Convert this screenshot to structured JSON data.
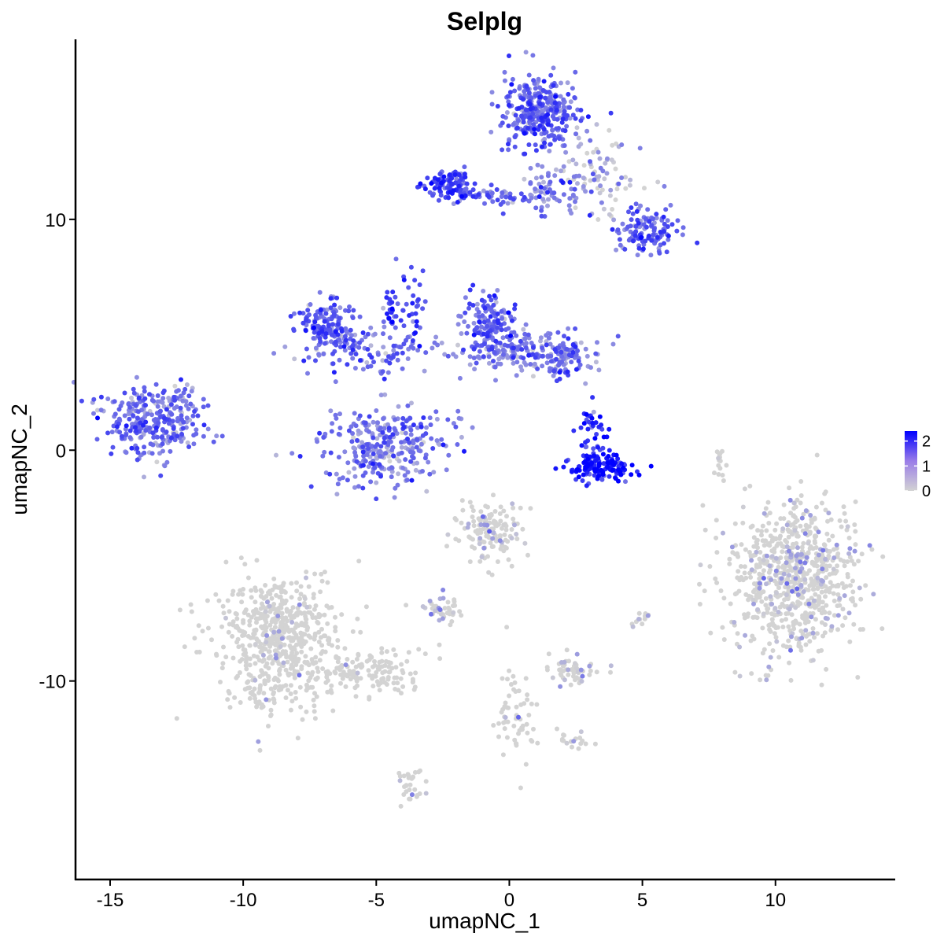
{
  "chart_data": {
    "type": "scatter",
    "title": "Selplg",
    "xlabel": "umapNC_1",
    "ylabel": "umapNC_2",
    "xlim": [
      -16.3,
      14.5
    ],
    "ylim": [
      -18.6,
      17.8
    ],
    "xticks": [
      -15,
      -10,
      -5,
      0,
      5,
      10
    ],
    "yticks": [
      -10,
      0,
      10
    ],
    "xtick_labels": [
      "-15",
      "-10",
      "-5",
      "0",
      "5",
      "10"
    ],
    "ytick_labels": [
      "-10",
      "0",
      "10"
    ],
    "grid": false,
    "legend": {
      "placement": "right",
      "type": "colorbar",
      "range": [
        0,
        2.4
      ],
      "ticks": [
        0,
        1,
        2
      ],
      "tick_labels": [
        "0",
        "1",
        "2"
      ],
      "low_color": "#d3d3d3",
      "high_color": "#0000ff"
    },
    "clusters": [
      {
        "cx": 1.2,
        "cy": 14.7,
        "sx": 0.75,
        "sy": 0.8,
        "n": 340,
        "mean": 1.2
      },
      {
        "cx": 3.2,
        "cy": 11.6,
        "sx": 0.9,
        "sy": 0.9,
        "n": 90,
        "mean": 0.6
      },
      {
        "cx": 5.2,
        "cy": 9.5,
        "sx": 0.6,
        "sy": 0.5,
        "n": 120,
        "mean": 1.3
      },
      {
        "cx": -2.2,
        "cy": 11.5,
        "sx": 0.45,
        "sy": 0.35,
        "n": 110,
        "mean": 1.5
      },
      {
        "cx": -0.2,
        "cy": 11.1,
        "sx": 0.9,
        "sy": 0.2,
        "n": 60,
        "mean": 1.2
      },
      {
        "cx": 1.7,
        "cy": 11.3,
        "sx": 0.6,
        "sy": 0.5,
        "n": 50,
        "mean": 1.0
      },
      {
        "cx": -6.8,
        "cy": 5.4,
        "sx": 0.55,
        "sy": 0.5,
        "n": 150,
        "mean": 1.2
      },
      {
        "cx": -5.3,
        "cy": 4.2,
        "sx": 1.2,
        "sy": 0.6,
        "n": 110,
        "mean": 1.1
      },
      {
        "cx": -3.8,
        "cy": 6.3,
        "sx": 0.4,
        "sy": 0.9,
        "n": 40,
        "mean": 1.5
      },
      {
        "cx": -0.8,
        "cy": 5.5,
        "sx": 0.5,
        "sy": 0.6,
        "n": 120,
        "mean": 1.3
      },
      {
        "cx": 0.3,
        "cy": 4.3,
        "sx": 1.3,
        "sy": 0.5,
        "n": 180,
        "mean": 1.0
      },
      {
        "cx": 2.1,
        "cy": 4.0,
        "sx": 0.5,
        "sy": 0.4,
        "n": 70,
        "mean": 1.1
      },
      {
        "cx": -4.8,
        "cy": 0.1,
        "sx": 1.2,
        "sy": 0.8,
        "n": 290,
        "mean": 0.9
      },
      {
        "cx": -13.4,
        "cy": 1.2,
        "sx": 0.9,
        "sy": 0.75,
        "n": 290,
        "mean": 1.1
      },
      {
        "cx": 3.5,
        "cy": -0.8,
        "sx": 0.6,
        "sy": 0.3,
        "n": 140,
        "mean": 2.1
      },
      {
        "cx": 3.2,
        "cy": 0.8,
        "sx": 0.25,
        "sy": 0.6,
        "n": 40,
        "mean": 1.8
      },
      {
        "cx": 10.7,
        "cy": -5.5,
        "sx": 1.2,
        "sy": 1.6,
        "n": 750,
        "mean": 0.2
      },
      {
        "cx": -0.6,
        "cy": -3.5,
        "sx": 0.6,
        "sy": 0.7,
        "n": 140,
        "mean": 0.2
      },
      {
        "cx": -8.6,
        "cy": -8.3,
        "sx": 1.1,
        "sy": 1.5,
        "n": 620,
        "mean": 0.02
      },
      {
        "cx": -5.2,
        "cy": -9.5,
        "sx": 1.1,
        "sy": 0.5,
        "n": 130,
        "mean": 0.02
      },
      {
        "cx": -2.5,
        "cy": -6.9,
        "sx": 0.45,
        "sy": 0.3,
        "n": 40,
        "mean": 0.3
      },
      {
        "cx": 2.4,
        "cy": -9.6,
        "sx": 0.55,
        "sy": 0.25,
        "n": 55,
        "mean": 0.25
      },
      {
        "cx": 0.2,
        "cy": -11.5,
        "sx": 0.4,
        "sy": 1.2,
        "n": 60,
        "mean": 0.05
      },
      {
        "cx": -3.6,
        "cy": -14.5,
        "sx": 0.3,
        "sy": 0.5,
        "n": 30,
        "mean": 0.1
      },
      {
        "cx": 7.9,
        "cy": -0.6,
        "sx": 0.1,
        "sy": 0.5,
        "n": 15,
        "mean": 0.05
      },
      {
        "cx": 5.0,
        "cy": -7.3,
        "sx": 0.2,
        "sy": 0.2,
        "n": 12,
        "mean": 0.3
      },
      {
        "cx": 2.4,
        "cy": -12.6,
        "sx": 0.4,
        "sy": 0.2,
        "n": 18,
        "mean": 0.2
      },
      {
        "cx": -2.6,
        "cy": 1.1,
        "sx": 0.6,
        "sy": 0.4,
        "n": 20,
        "mean": 1.2
      },
      {
        "cx": -4.5,
        "cy": 6.2,
        "sx": 0.1,
        "sy": 0.4,
        "n": 20,
        "mean": 1.6
      },
      {
        "cx": -12.4,
        "cy": 2.3,
        "sx": 0.4,
        "sy": 0.3,
        "n": 18,
        "mean": 1.0
      }
    ]
  }
}
